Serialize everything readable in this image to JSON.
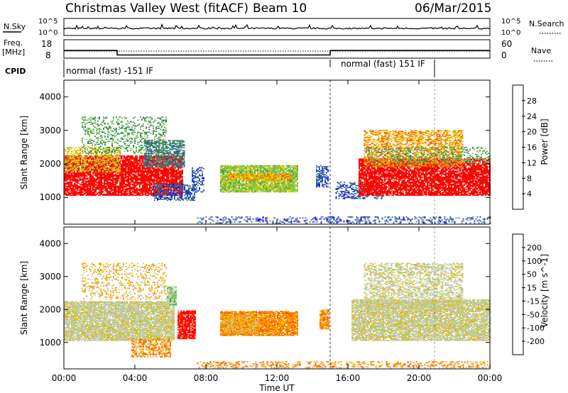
{
  "header": {
    "title": "Christmas Valley West (fitACF)",
    "beam": "Beam 10",
    "date": "06/Mar/2015"
  },
  "strips": {
    "nsky_label": "N.Sky",
    "nsky_ticks": [
      "10^5",
      "10^0"
    ],
    "nsearch_label": "N.Search",
    "freq_label": "Freq.",
    "freq_unit": "[MHz]",
    "freq_ticks": [
      "18",
      "8"
    ],
    "nave_ticks": [
      "60",
      "0"
    ],
    "nave_label": "Nave",
    "cpid_label": "CPID",
    "cpid_segments": [
      {
        "label": "normal (fast) -151 IF",
        "start_hour": 0,
        "end_hour": 15
      },
      {
        "label": "normal (fast) 151 IF",
        "start_hour": 15,
        "end_hour": 24
      }
    ]
  },
  "x_axis": {
    "label": "Time UT",
    "tick_labels": [
      "00:00",
      "04:00",
      "08:00",
      "12:00",
      "16:00",
      "20:00",
      "00:00"
    ],
    "range_hours": [
      0,
      24
    ]
  },
  "colors": {
    "power": [
      "#0a14e6",
      "#2a52b8",
      "#3a7d64",
      "#4aa05a",
      "#8cc83c",
      "#f0d000",
      "#f09a00",
      "#f05a00",
      "#e62000",
      "#ff0000"
    ],
    "velocity": [
      "#1414d2",
      "#2840b8",
      "#1e6e3c",
      "#30a040",
      "#a8d878",
      "#c8c8c0",
      "#e6b800",
      "#ff8c00",
      "#ff5000",
      "#ff0000"
    ]
  },
  "chart_data": [
    {
      "type": "heatmap",
      "name": "power",
      "ylabel": "Slant Range [km]",
      "y_ticks": [
        1000,
        2000,
        3000,
        4000
      ],
      "ylim": [
        200,
        4500
      ],
      "xlim": [
        0,
        24
      ],
      "colorbar_label": "Power [dB]",
      "colorbar_ticks": [
        "4",
        "8",
        "12",
        "16",
        "20",
        "24",
        "28"
      ],
      "colorbar_range": [
        0,
        30
      ],
      "regions": [
        {
          "t0": 0.0,
          "t1": 6.7,
          "r0": 1050,
          "r1": 2250,
          "c": 9,
          "d": 0.85
        },
        {
          "t0": 0.0,
          "t1": 3.2,
          "r0": 1750,
          "r1": 2500,
          "c": 5,
          "d": 0.5
        },
        {
          "t0": 1.0,
          "t1": 5.8,
          "r0": 2300,
          "r1": 3400,
          "c": 3,
          "d": 0.3
        },
        {
          "t0": 4.5,
          "t1": 6.8,
          "r0": 1900,
          "r1": 2700,
          "c": 2,
          "d": 0.6
        },
        {
          "t0": 5.0,
          "t1": 7.4,
          "r0": 900,
          "r1": 1400,
          "c": 1,
          "d": 0.55
        },
        {
          "t0": 7.2,
          "t1": 7.9,
          "r0": 1150,
          "r1": 1900,
          "c": 1,
          "d": 0.45
        },
        {
          "t0": 8.8,
          "t1": 13.2,
          "r0": 1150,
          "r1": 1950,
          "c": 4,
          "d": 0.9
        },
        {
          "t0": 9.2,
          "t1": 12.8,
          "r0": 1500,
          "r1": 1700,
          "c": 6,
          "d": 0.7
        },
        {
          "t0": 14.2,
          "t1": 14.9,
          "r0": 1300,
          "r1": 1950,
          "c": 1,
          "d": 0.6
        },
        {
          "t0": 15.3,
          "t1": 18.0,
          "r0": 950,
          "r1": 1450,
          "c": 1,
          "d": 0.4
        },
        {
          "t0": 16.6,
          "t1": 24.0,
          "r0": 1050,
          "r1": 2150,
          "c": 9,
          "d": 0.85
        },
        {
          "t0": 16.9,
          "t1": 22.5,
          "r0": 1900,
          "r1": 3000,
          "c": 6,
          "d": 0.55
        },
        {
          "t0": 17.0,
          "t1": 24.0,
          "r0": 2000,
          "r1": 2500,
          "c": 3,
          "d": 0.3
        },
        {
          "t0": 7.5,
          "t1": 24.0,
          "r0": 220,
          "r1": 420,
          "c": 1,
          "d": 0.28
        }
      ]
    },
    {
      "type": "heatmap",
      "name": "velocity",
      "ylabel": "Slant Range [km]",
      "y_ticks": [
        1000,
        2000,
        3000,
        4000
      ],
      "ylim": [
        200,
        4500
      ],
      "xlim": [
        0,
        24
      ],
      "colorbar_label": "Velocity [m s^-1]",
      "colorbar_ticks": [
        "200",
        "100",
        "50",
        "15",
        "-15",
        "-50",
        "-100",
        "-200"
      ],
      "colorbar_range": [
        -250,
        250
      ],
      "regions": [
        {
          "t0": 0.0,
          "t1": 6.2,
          "r0": 1050,
          "r1": 2250,
          "c": 5,
          "d": 0.88
        },
        {
          "t0": 1.0,
          "t1": 5.8,
          "r0": 2300,
          "r1": 3400,
          "c": 6,
          "d": 0.25
        },
        {
          "t0": 5.8,
          "t1": 6.3,
          "r0": 2100,
          "r1": 2700,
          "c": 4,
          "d": 0.8
        },
        {
          "t0": 6.4,
          "t1": 7.4,
          "r0": 1100,
          "r1": 1950,
          "c": 9,
          "d": 0.85
        },
        {
          "t0": 3.8,
          "t1": 6.0,
          "r0": 550,
          "r1": 1100,
          "c": 7,
          "d": 0.5
        },
        {
          "t0": 8.8,
          "t1": 13.2,
          "r0": 1200,
          "r1": 1950,
          "c": 7,
          "d": 0.9
        },
        {
          "t0": 9.0,
          "t1": 11.0,
          "r0": 1300,
          "r1": 1800,
          "c": 6,
          "d": 0.6
        },
        {
          "t0": 14.4,
          "t1": 14.9,
          "r0": 1400,
          "r1": 2000,
          "c": 7,
          "d": 0.8
        },
        {
          "t0": 16.2,
          "t1": 24.0,
          "r0": 1050,
          "r1": 2300,
          "c": 5,
          "d": 0.85
        },
        {
          "t0": 16.9,
          "t1": 22.5,
          "r0": 2000,
          "r1": 3400,
          "c": 5,
          "d": 0.5
        },
        {
          "t0": 7.5,
          "t1": 24.0,
          "r0": 220,
          "r1": 420,
          "c": 7,
          "d": 0.35
        }
      ]
    }
  ]
}
